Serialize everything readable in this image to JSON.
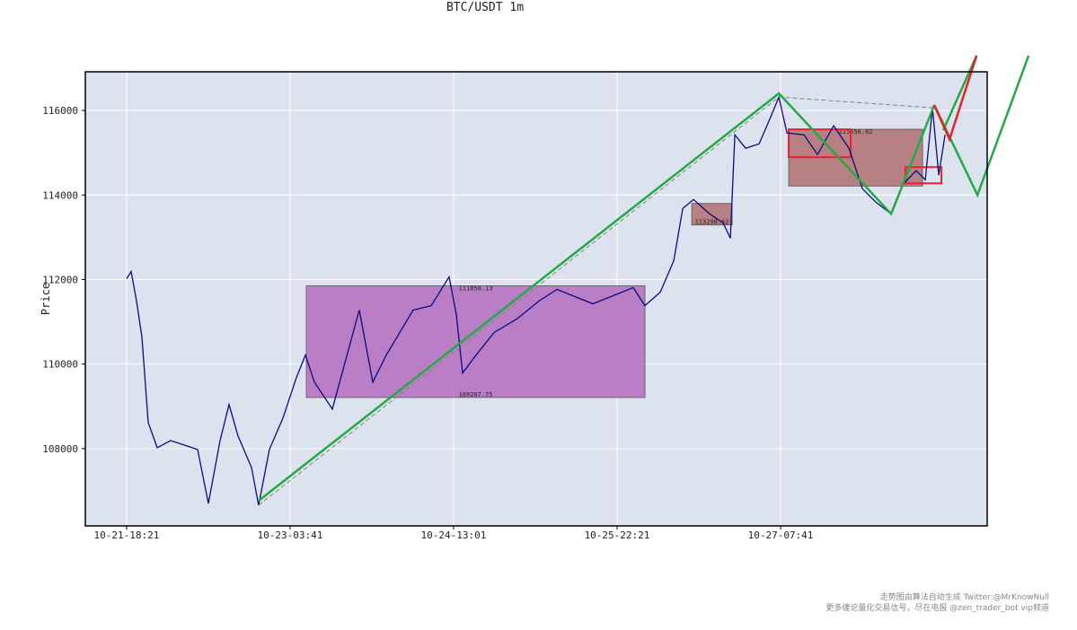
{
  "chart_data": {
    "type": "line",
    "title": "BTC/USDT 1m",
    "y_label": "Price",
    "footer": [
      "走势图由算法自动生成  Twitter:@MrKnowNull",
      "更多缠论量化交易信号，尽在电报 @zen_trader_bot vip频道"
    ],
    "xlim": [
      -505,
      10527
    ],
    "ylim": [
      106170,
      116915
    ],
    "xticks": [
      {
        "value": 0,
        "label": "10-21-18:21"
      },
      {
        "value": 2000,
        "label": "10-23-03:41"
      },
      {
        "value": 4000,
        "label": "10-24-13:01"
      },
      {
        "value": 6000,
        "label": "10-25-22:21"
      },
      {
        "value": 8000,
        "label": "10-27-07:41"
      }
    ],
    "yticks": [
      108000,
      110000,
      112000,
      114000,
      116000
    ],
    "grid": true,
    "x": [
      0,
      55,
      121,
      187,
      264,
      374,
      538,
      703,
      868,
      1000,
      1143,
      1253,
      1363,
      1528,
      1615,
      1747,
      1912,
      2077,
      2187,
      2297,
      2517,
      2682,
      2846,
      3011,
      3176,
      3341,
      3506,
      3726,
      3945,
      4033,
      4110,
      4275,
      4495,
      4770,
      5044,
      5264,
      5484,
      5704,
      5979,
      6198,
      6341,
      6528,
      6693,
      6803,
      6935,
      7133,
      7297,
      7385,
      7440,
      7572,
      7737,
      7880,
      7979,
      8078,
      8286,
      8451,
      8649,
      8836,
      9001,
      9166,
      9352,
      9495,
      9660,
      9770,
      9858,
      9935,
      10012
    ],
    "series": [
      {
        "name": "BTC/USDT",
        "color": "#0b0b80",
        "values": [
          112021,
          112191,
          111489,
          110638,
          108616,
          108020,
          108190,
          108084,
          107977,
          106701,
          108190,
          109041,
          108297,
          107552,
          106658,
          107977,
          108722,
          109680,
          110212,
          109573,
          108935,
          110106,
          111276,
          109573,
          110212,
          110744,
          111276,
          111382,
          112063,
          111170,
          109786,
          110212,
          110744,
          111063,
          111489,
          111765,
          111595,
          111425,
          111638,
          111808,
          111382,
          111702,
          112446,
          113681,
          113893,
          113553,
          113340,
          112978,
          115425,
          115106,
          115213,
          115851,
          116319,
          115468,
          115425,
          114957,
          115638,
          115106,
          114149,
          113830,
          113553,
          114255,
          114574,
          114361,
          116064,
          114468,
          115425
        ]
      }
    ],
    "zones": [
      {
        "x0": 2198,
        "x1": 6341,
        "y0": 109207.75,
        "y1": 111850.13,
        "color": "#b36cbe",
        "labels": [
          "y0",
          "y1"
        ]
      },
      {
        "x0": 6913,
        "x1": 7407,
        "y0": 113290.62,
        "y1": 113800,
        "color": "#b07070",
        "labels": [
          "y0"
        ]
      },
      {
        "x0": 8099,
        "x1": 9737,
        "y0": 114212,
        "y1": 115556.02,
        "color": "#b07070",
        "labels": [
          "y1"
        ]
      },
      {
        "x0": 8099,
        "x1": 8858,
        "y0": 114893,
        "y1": 115553,
        "color": "#e8202a",
        "outline": true,
        "labels": []
      },
      {
        "x0": 9528,
        "x1": 9968,
        "y0": 114276,
        "y1": 114659,
        "color": "#e8202a",
        "outline": true,
        "labels": []
      }
    ],
    "lines": [
      {
        "color": "#7a8a7a",
        "dash": true,
        "width": 1,
        "x": [
          1615,
          7979,
          9858
        ],
        "y": [
          106658,
          116319,
          116064
        ]
      },
      {
        "color": "#22aa44",
        "width": 2.5,
        "x": [
          1615,
          7979,
          9352,
          9880
        ],
        "y": [
          106765,
          116404,
          113553,
          116128
        ]
      },
      {
        "color": "#22aa44",
        "width": 2.5,
        "x": [
          9880,
          10408,
          11034
        ],
        "y": [
          116128,
          114000,
          117298
        ]
      },
      {
        "color": "#22aa44",
        "width": 2.5,
        "x": [
          9990,
          10397
        ],
        "y": [
          115532,
          117298
        ]
      },
      {
        "color": "#e8202a",
        "width": 2.5,
        "x": [
          9880,
          10067,
          10397
        ],
        "y": [
          116128,
          115319,
          117298
        ]
      }
    ]
  }
}
